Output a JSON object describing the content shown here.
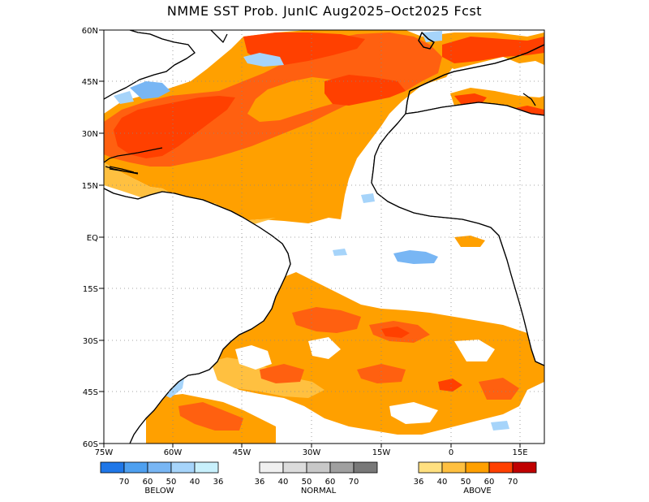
{
  "title": "NMME SST Prob. JunIC   Aug2025–Oct2025 Fcst",
  "map": {
    "lat_labels": [
      "60N",
      "45N",
      "30N",
      "15N",
      "EQ",
      "15S",
      "30S",
      "45S",
      "60S"
    ],
    "lon_labels": [
      "75W",
      "60W",
      "45W",
      "30W",
      "15W",
      "0",
      "15E"
    ]
  },
  "legend": {
    "below": {
      "label": "BELOW",
      "ticks": [
        "70",
        "60",
        "50",
        "40",
        "36"
      ],
      "colors": [
        "#1f77e8",
        "#4ea0f0",
        "#78b6f4",
        "#a6d4fa",
        "#c8f0fc"
      ]
    },
    "normal": {
      "label": "NORMAL",
      "ticks": [
        "36",
        "40",
        "50",
        "60",
        "70"
      ],
      "colors": [
        "#f0f0f0",
        "#dcdcdc",
        "#c8c8c8",
        "#a0a0a0",
        "#787878"
      ]
    },
    "above": {
      "label": "ABOVE",
      "ticks": [
        "36",
        "40",
        "50",
        "60",
        "70"
      ],
      "colors": [
        "#ffe080",
        "#ffc040",
        "#ffa000",
        "#ff4000",
        "#c00000"
      ]
    }
  }
}
